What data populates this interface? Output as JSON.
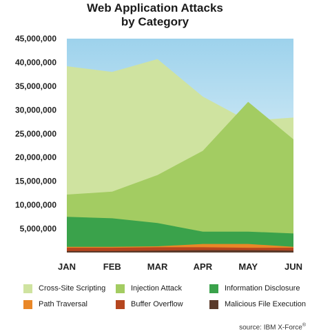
{
  "chart_data": {
    "type": "area",
    "title": [
      "Web Application Attacks",
      "by Category"
    ],
    "categories": [
      "JAN",
      "FEB",
      "MAR",
      "APR",
      "MAY",
      "JUN"
    ],
    "ylim": [
      0,
      45000000
    ],
    "yticks": [
      "45,000,000",
      "40,000,000",
      "35,000,000",
      "30,000,000",
      "25,000,000",
      "20,000,000",
      "15,000,000",
      "10,000,000",
      "5,000,000"
    ],
    "ytick_values": [
      45000000,
      40000000,
      35000000,
      30000000,
      25000000,
      20000000,
      15000000,
      10000000,
      5000000
    ],
    "series": [
      {
        "name": "Cross-Site Scripting",
        "color": "#cfe3a0",
        "values": [
          39200000,
          38000000,
          40700000,
          32800000,
          27700000,
          28400000
        ]
      },
      {
        "name": "Injection Attack",
        "color": "#a3cc62",
        "values": [
          12200000,
          12800000,
          16300000,
          21400000,
          31700000,
          23800000
        ]
      },
      {
        "name": "Information Disclosure",
        "color": "#3aa24b",
        "values": [
          7500000,
          7200000,
          6200000,
          4400000,
          4400000,
          4000000
        ]
      },
      {
        "name": "Path Traversal",
        "color": "#e98727",
        "values": [
          1200000,
          1200000,
          1300000,
          1800000,
          1800000,
          1200000
        ]
      },
      {
        "name": "Buffer Overflow",
        "color": "#b5461f",
        "values": [
          1000000,
          1000000,
          1100000,
          1100000,
          1000000,
          1000000
        ]
      },
      {
        "name": "Malicious File Execution",
        "color": "#5a3a2a",
        "values": [
          300000,
          300000,
          400000,
          500000,
          500000,
          400000
        ]
      }
    ],
    "background_gradient": [
      "#9dd2ec",
      "#ffffff"
    ],
    "grid": false,
    "legend_position": "bottom"
  },
  "source_label": "source: IBM X-Force",
  "source_mark": "®"
}
